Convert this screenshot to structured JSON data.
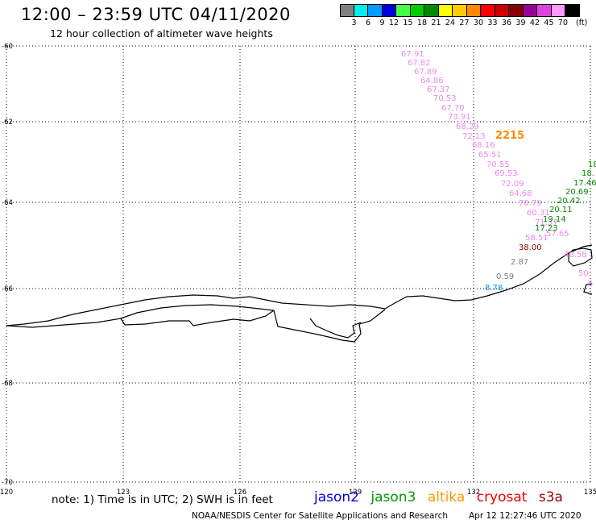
{
  "header": {
    "title": "12:00 – 23:59 UTC 04/11/2020",
    "subtitle": "12 hour collection of altimeter wave heights"
  },
  "legend": {
    "unit": "(ft)",
    "items": [
      {
        "label": "3",
        "color": "#808080"
      },
      {
        "label": "6",
        "color": "#00eeee"
      },
      {
        "label": "9",
        "color": "#0099ff"
      },
      {
        "label": "12",
        "color": "#0000dd"
      },
      {
        "label": "15",
        "color": "#44ff44"
      },
      {
        "label": "18",
        "color": "#00cc00"
      },
      {
        "label": "21",
        "color": "#008800"
      },
      {
        "label": "24",
        "color": "#ffff00"
      },
      {
        "label": "27",
        "color": "#ffcc00"
      },
      {
        "label": "30",
        "color": "#ff8800"
      },
      {
        "label": "33",
        "color": "#ff0000"
      },
      {
        "label": "36",
        "color": "#cc0000"
      },
      {
        "label": "39",
        "color": "#880000"
      },
      {
        "label": "42",
        "color": "#990099"
      },
      {
        "label": "45",
        "color": "#dd44dd"
      },
      {
        "label": "70",
        "color": "#ff99ff"
      },
      {
        "label": "",
        "color": "#000000"
      }
    ]
  },
  "map": {
    "lat_labels": [
      "-60",
      "-62",
      "-64",
      "-66",
      "-68",
      "-70"
    ],
    "lon_labels": [
      "120",
      "123",
      "126",
      "129",
      "132",
      "135"
    ],
    "time_label": "2215",
    "time_label_color": "#ff8800",
    "observations": [
      {
        "v": "67.91",
        "c": "#ee88ee"
      },
      {
        "v": "67.82",
        "c": "#ee88ee"
      },
      {
        "v": "67.89",
        "c": "#ee88ee"
      },
      {
        "v": "64.86",
        "c": "#ee88ee"
      },
      {
        "v": "67.37",
        "c": "#ee88ee"
      },
      {
        "v": "70.53",
        "c": "#ee88ee"
      },
      {
        "v": "67.70",
        "c": "#ee88ee"
      },
      {
        "v": "73.91",
        "c": "#ee88ee"
      },
      {
        "v": "68.29",
        "c": "#ee88ee"
      },
      {
        "v": "72.13",
        "c": "#ee88ee"
      },
      {
        "v": "68.16",
        "c": "#ee88ee"
      },
      {
        "v": "65.51",
        "c": "#ee88ee"
      },
      {
        "v": "70.55",
        "c": "#ee88ee"
      },
      {
        "v": "69.53",
        "c": "#ee88ee"
      },
      {
        "v": "72.09",
        "c": "#ee88ee"
      },
      {
        "v": "64.68",
        "c": "#ee88ee"
      },
      {
        "v": "70.79",
        "c": "#ee88ee"
      },
      {
        "v": "60.31",
        "c": "#ee88ee"
      },
      {
        "v": "71.37",
        "c": "#ee88ee"
      },
      {
        "v": "58.51",
        "c": "#ee88ee"
      },
      {
        "v": "38.00",
        "c": "#880000"
      },
      {
        "v": "2.87",
        "c": "#808080"
      },
      {
        "v": "0.59",
        "c": "#808080"
      },
      {
        "v": "8.78",
        "c": "#0099ff"
      },
      {
        "v": "18.",
        "c": "#008800"
      },
      {
        "v": "18.",
        "c": "#008800"
      },
      {
        "v": "17.46",
        "c": "#008800"
      },
      {
        "v": "20.69",
        "c": "#008800"
      },
      {
        "v": "20.42",
        "c": "#008800"
      },
      {
        "v": "20.11",
        "c": "#008800"
      },
      {
        "v": "19.14",
        "c": "#008800"
      },
      {
        "v": "17.23",
        "c": "#008800"
      },
      {
        "v": "57.65",
        "c": "#ee88ee"
      },
      {
        "v": "48.58",
        "c": "#ee88ee"
      },
      {
        "v": "50.",
        "c": "#ee88ee"
      },
      {
        "v": "6",
        "c": "#ee88ee"
      }
    ]
  },
  "footer": {
    "note": "note: 1) Time is in UTC; 2) SWH is in feet",
    "satellites": [
      {
        "name": "jason2",
        "color": "#0000dd"
      },
      {
        "name": "jason3",
        "color": "#009900"
      },
      {
        "name": "altika",
        "color": "#ff9900"
      },
      {
        "name": "cryosat",
        "color": "#ee0000"
      },
      {
        "name": "s3a",
        "color": "#990000"
      }
    ],
    "credit": "NOAA/NESDIS Center for Satellite Applications and Research",
    "timestamp": "Apr 12 12:27:46 UTC 2020"
  }
}
